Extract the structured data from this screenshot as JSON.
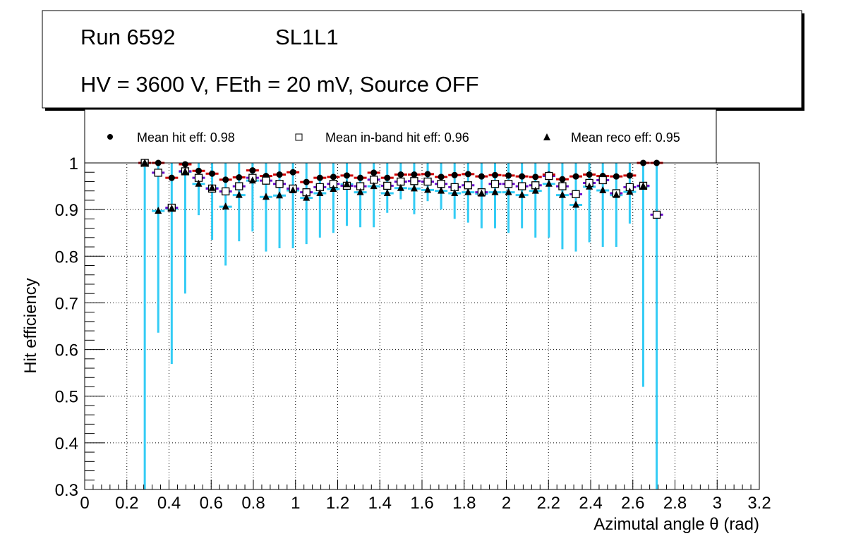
{
  "header": {
    "run": "Run 6592",
    "layer": "SL1L1",
    "conditions": "HV = 3600 V, FEth = 20 mV, Source OFF"
  },
  "colors": {
    "hit_err": "#cc0000",
    "inband_err": "#6a0dcc",
    "reco_err": "#33ccf5",
    "marker": "#000000"
  },
  "chart_data": {
    "type": "scatter",
    "xlabel": "Azimutal angle θ (rad)",
    "ylabel": "Hit efficiency",
    "xlim": [
      0,
      3.2
    ],
    "ylim": [
      0.3,
      1.0
    ],
    "grid": true,
    "xticks": [
      "0",
      "0.2",
      "0.4",
      "0.6",
      "0.8",
      "1",
      "1.2",
      "1.4",
      "1.6",
      "1.8",
      "2",
      "2.2",
      "2.4",
      "2.6",
      "2.8",
      "3",
      "3.2"
    ],
    "yticks": [
      "0.3",
      "0.4",
      "0.5",
      "0.6",
      "0.7",
      "0.8",
      "0.9",
      "1"
    ],
    "legend_position": "top",
    "bin_start": 0.285,
    "bin_width": 0.0639,
    "series": [
      {
        "name": "Mean hit  eff: 0.98",
        "marker": "circle",
        "values": [
          1.0,
          1.0,
          0.968,
          0.997,
          0.983,
          0.977,
          0.964,
          0.969,
          0.984,
          0.972,
          0.975,
          0.98,
          0.959,
          0.968,
          0.97,
          0.973,
          0.968,
          0.979,
          0.968,
          0.975,
          0.975,
          0.976,
          0.97,
          0.974,
          0.976,
          0.971,
          0.974,
          0.973,
          0.971,
          0.97,
          0.975,
          0.965,
          0.971,
          0.975,
          0.972,
          0.971,
          0.973,
          1.0,
          1.0
        ]
      },
      {
        "name": "Mean in-band hit eff: 0.96",
        "marker": "open-square",
        "values": [
          1.0,
          0.979,
          0.904,
          0.982,
          0.968,
          0.945,
          0.939,
          0.95,
          0.968,
          0.962,
          0.955,
          0.945,
          0.937,
          0.948,
          0.955,
          0.951,
          0.95,
          0.964,
          0.951,
          0.96,
          0.961,
          0.96,
          0.955,
          0.948,
          0.952,
          0.937,
          0.955,
          0.955,
          0.95,
          0.952,
          0.972,
          0.95,
          0.933,
          0.957,
          0.963,
          0.935,
          0.948,
          0.951,
          0.889
        ]
      },
      {
        "name": "Mean reco eff: 0.95",
        "marker": "triangle",
        "values": [
          1.0,
          0.897,
          0.902,
          0.981,
          0.955,
          0.946,
          0.906,
          0.931,
          0.962,
          0.927,
          0.93,
          0.941,
          0.925,
          0.935,
          0.944,
          0.954,
          0.937,
          0.95,
          0.935,
          0.946,
          0.945,
          0.942,
          0.94,
          0.935,
          0.937,
          0.934,
          0.937,
          0.937,
          0.931,
          0.94,
          0.955,
          0.931,
          0.91,
          0.949,
          0.941,
          0.931,
          0.938,
          0.95,
          null
        ],
        "err_low": [
          0.3,
          0.636,
          0.569,
          0.72,
          0.888,
          0.835,
          0.78,
          0.832,
          0.853,
          0.81,
          0.817,
          0.817,
          0.826,
          0.84,
          0.85,
          0.865,
          0.862,
          0.862,
          0.893,
          0.922,
          0.89,
          0.918,
          0.9,
          0.88,
          0.872,
          0.86,
          0.86,
          0.85,
          0.86,
          0.84,
          0.84,
          0.815,
          0.81,
          0.83,
          0.82,
          0.82,
          0.87,
          0.52,
          0.3
        ]
      }
    ]
  }
}
